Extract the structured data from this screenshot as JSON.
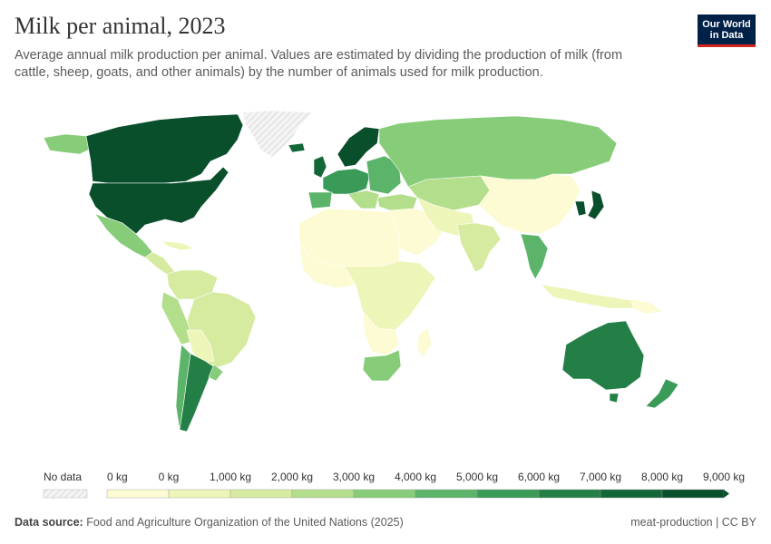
{
  "header": {
    "title": "Milk per animal, 2023",
    "subtitle": "Average annual milk production per animal. Values are estimated by dividing the production of milk (from cattle, sheep, goats, and other animals) by the number of animals used for milk production.",
    "logo_line1": "Our World",
    "logo_line2": "in Data"
  },
  "legend": {
    "no_data_label": "No data",
    "bins": [
      "0 kg",
      "0 kg",
      "1,000 kg",
      "2,000 kg",
      "3,000 kg",
      "4,000 kg",
      "5,000 kg",
      "6,000 kg",
      "7,000 kg",
      "8,000 kg",
      "9,000 kg"
    ],
    "colors": [
      "#fcfbd3",
      "#eef5b8",
      "#d6eba0",
      "#b3de8c",
      "#86cc79",
      "#5cb46a",
      "#3a9a58",
      "#237f46",
      "#136637",
      "#0a4f2c"
    ]
  },
  "colors": {
    "no_data": "#e9e9e9",
    "border": "#ffffff"
  },
  "footer": {
    "source_label": "Data source:",
    "source_text": "Food and Agriculture Organization of the United Nations (2025)",
    "right_text": "meat-production | CC BY"
  }
}
